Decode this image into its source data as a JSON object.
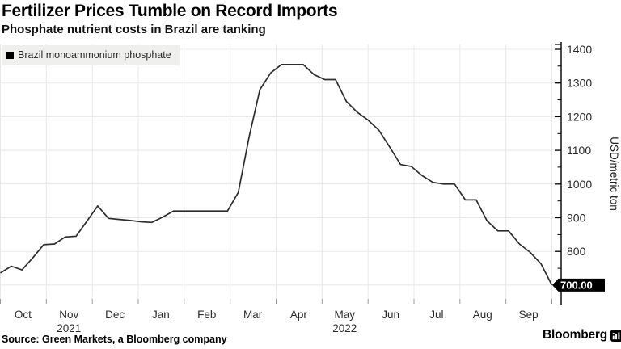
{
  "header": {
    "title": "Fertilizer Prices Tumble on Record Imports",
    "subtitle": "Phosphate nutrient costs in Brazil are tanking"
  },
  "chart_data": {
    "type": "line",
    "title": "Fertilizer Prices Tumble on Record Imports",
    "subtitle": "Phosphate nutrient costs in Brazil are tanking",
    "ylabel": "USD/metric ton",
    "ylim": [
      650,
      1420
    ],
    "y_ticks": [
      800,
      900,
      1000,
      1100,
      1200,
      1300,
      1400
    ],
    "y_minor_ticks": [
      750,
      850,
      950,
      1050,
      1150,
      1250,
      1350
    ],
    "grid": true,
    "legend_position": "top-left",
    "x_tick_months": [
      "Oct",
      "Nov",
      "Dec",
      "Jan",
      "Feb",
      "Mar",
      "Apr",
      "May",
      "Jun",
      "Jul",
      "Aug",
      "Sep"
    ],
    "x_year_labels": [
      {
        "month_index": 1,
        "label": "2021"
      },
      {
        "month_index": 7,
        "label": "2022"
      }
    ],
    "last_value_label": "700.00",
    "series": [
      {
        "name": "Brazil monoammonium phosphate",
        "color": "#2d2d2d",
        "x": [
          "2021-10-01",
          "2021-10-08",
          "2021-10-15",
          "2021-10-22",
          "2021-10-29",
          "2021-11-05",
          "2021-11-12",
          "2021-11-19",
          "2021-11-26",
          "2021-12-03",
          "2021-12-10",
          "2021-12-17",
          "2021-12-24",
          "2021-12-31",
          "2022-01-07",
          "2022-01-14",
          "2022-01-21",
          "2022-01-28",
          "2022-02-04",
          "2022-02-11",
          "2022-02-18",
          "2022-02-25",
          "2022-03-04",
          "2022-03-11",
          "2022-03-18",
          "2022-03-25",
          "2022-04-01",
          "2022-04-08",
          "2022-04-15",
          "2022-04-22",
          "2022-04-29",
          "2022-05-06",
          "2022-05-13",
          "2022-05-20",
          "2022-05-27",
          "2022-06-03",
          "2022-06-10",
          "2022-06-17",
          "2022-06-24",
          "2022-07-01",
          "2022-07-08",
          "2022-07-15",
          "2022-07-22",
          "2022-07-29",
          "2022-08-05",
          "2022-08-12",
          "2022-08-19",
          "2022-08-26",
          "2022-09-02",
          "2022-09-09",
          "2022-09-16",
          "2022-09-23"
        ],
        "values": [
          736,
          756,
          745,
          781,
          820,
          822,
          843,
          845,
          890,
          935,
          898,
          895,
          892,
          888,
          886,
          902,
          920,
          920,
          920,
          920,
          920,
          920,
          975,
          1140,
          1280,
          1330,
          1355,
          1355,
          1355,
          1325,
          1310,
          1310,
          1245,
          1213,
          1190,
          1160,
          1110,
          1058,
          1052,
          1025,
          1005,
          1000,
          1000,
          953,
          953,
          891,
          861,
          861,
          822,
          797,
          763,
          700
        ]
      }
    ]
  },
  "footer": {
    "source": "Source: Green Markets, a Bloomberg company",
    "brand": "Bloomberg"
  },
  "colors": {
    "line": "#2d2d2d",
    "grid": "#e8e8e8",
    "axis": "#000000",
    "x_tick": "#999999",
    "tick_label": "#2b2b2b",
    "badge_bg": "#000000",
    "badge_text": "#ffffff",
    "legend_bg": "#efefee"
  }
}
